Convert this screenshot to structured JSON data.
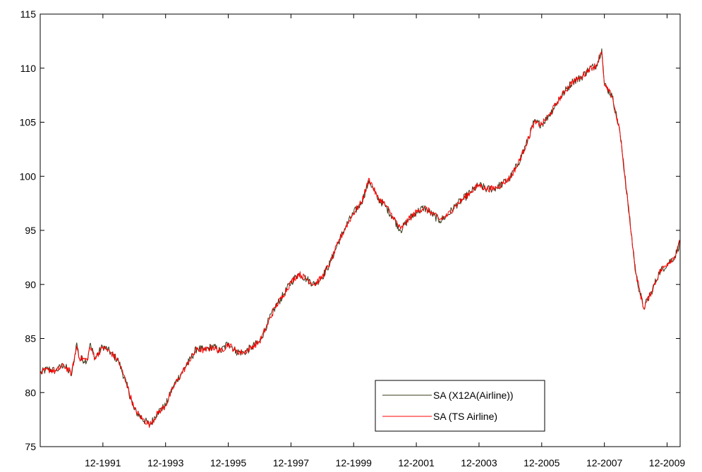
{
  "chart_data": {
    "type": "line",
    "title": "",
    "xlabel": "",
    "ylabel": "",
    "xlim": [
      "1989-12",
      "2010-05"
    ],
    "ylim": [
      75,
      115
    ],
    "grid": false,
    "legend_position": "bottom-right",
    "x_ticks": [
      "12-1991",
      "12-1993",
      "12-1995",
      "12-1997",
      "12-1999",
      "12-2001",
      "12-2003",
      "12-2005",
      "12-2007",
      "12-2009"
    ],
    "y_ticks": [
      75,
      80,
      85,
      90,
      95,
      100,
      105,
      110,
      115
    ],
    "series": [
      {
        "name": "SA (X12A(Airline))",
        "color": "#3a3a1a",
        "points": [
          [
            "1989-12",
            81.8
          ],
          [
            "1990-03",
            82.2
          ],
          [
            "1990-06",
            82.0
          ],
          [
            "1990-09",
            82.6
          ],
          [
            "1990-12",
            81.6
          ],
          [
            "1991-02",
            84.6
          ],
          [
            "1991-03",
            83.1
          ],
          [
            "1991-06",
            83.0
          ],
          [
            "1991-07",
            84.5
          ],
          [
            "1991-09",
            83.2
          ],
          [
            "1991-12",
            84.3
          ],
          [
            "1992-03",
            83.7
          ],
          [
            "1992-06",
            82.9
          ],
          [
            "1992-09",
            80.8
          ],
          [
            "1992-12",
            78.4
          ],
          [
            "1993-03",
            77.6
          ],
          [
            "1993-06",
            77.0
          ],
          [
            "1993-09",
            78.2
          ],
          [
            "1993-12",
            78.8
          ],
          [
            "1994-03",
            80.6
          ],
          [
            "1994-06",
            81.8
          ],
          [
            "1994-09",
            82.9
          ],
          [
            "1994-12",
            84.1
          ],
          [
            "1995-03",
            83.9
          ],
          [
            "1995-06",
            84.3
          ],
          [
            "1995-09",
            83.8
          ],
          [
            "1995-12",
            84.6
          ],
          [
            "1996-03",
            83.8
          ],
          [
            "1996-06",
            83.7
          ],
          [
            "1996-09",
            84.2
          ],
          [
            "1996-12",
            84.7
          ],
          [
            "1997-03",
            86.4
          ],
          [
            "1997-06",
            87.9
          ],
          [
            "1997-09",
            89.0
          ],
          [
            "1997-12",
            90.2
          ],
          [
            "1998-03",
            91.0
          ],
          [
            "1998-06",
            90.5
          ],
          [
            "1998-09",
            90.0
          ],
          [
            "1998-12",
            90.7
          ],
          [
            "1999-03",
            92.0
          ],
          [
            "1999-06",
            93.8
          ],
          [
            "1999-09",
            95.4
          ],
          [
            "1999-12",
            96.6
          ],
          [
            "2000-03",
            97.6
          ],
          [
            "2000-06",
            99.6
          ],
          [
            "2000-09",
            98.0
          ],
          [
            "2000-12",
            97.3
          ],
          [
            "2001-03",
            96.2
          ],
          [
            "2001-06",
            95.0
          ],
          [
            "2001-09",
            96.0
          ],
          [
            "2001-12",
            96.7
          ],
          [
            "2002-03",
            97.1
          ],
          [
            "2002-06",
            96.5
          ],
          [
            "2002-09",
            95.9
          ],
          [
            "2002-12",
            96.4
          ],
          [
            "2003-03",
            97.3
          ],
          [
            "2003-06",
            97.9
          ],
          [
            "2003-09",
            98.6
          ],
          [
            "2003-12",
            99.2
          ],
          [
            "2004-03",
            98.8
          ],
          [
            "2004-06",
            98.9
          ],
          [
            "2004-09",
            99.3
          ],
          [
            "2004-12",
            99.9
          ],
          [
            "2005-03",
            101.2
          ],
          [
            "2005-06",
            102.9
          ],
          [
            "2005-09",
            105.0
          ],
          [
            "2005-12",
            104.8
          ],
          [
            "2006-03",
            105.7
          ],
          [
            "2006-06",
            106.9
          ],
          [
            "2006-09",
            107.9
          ],
          [
            "2006-12",
            108.8
          ],
          [
            "2007-03",
            109.1
          ],
          [
            "2007-06",
            109.9
          ],
          [
            "2007-09",
            110.3
          ],
          [
            "2007-11",
            111.8
          ],
          [
            "2007-12",
            108.5
          ],
          [
            "2008-03",
            107.4
          ],
          [
            "2008-06",
            104.0
          ],
          [
            "2008-09",
            97.5
          ],
          [
            "2008-12",
            91.0
          ],
          [
            "2009-03",
            87.8
          ],
          [
            "2009-06",
            89.3
          ],
          [
            "2009-09",
            91.1
          ],
          [
            "2009-12",
            91.9
          ],
          [
            "2010-03",
            92.6
          ],
          [
            "2010-05",
            93.9
          ]
        ]
      },
      {
        "name": "SA (TS Airline)",
        "color": "#ff0000",
        "points": [
          [
            "1989-12",
            81.8
          ],
          [
            "1990-03",
            82.1
          ],
          [
            "1990-06",
            82.0
          ],
          [
            "1990-09",
            82.5
          ],
          [
            "1990-12",
            81.8
          ],
          [
            "1991-02",
            84.3
          ],
          [
            "1991-03",
            83.2
          ],
          [
            "1991-06",
            83.0
          ],
          [
            "1991-07",
            84.2
          ],
          [
            "1991-09",
            83.2
          ],
          [
            "1991-12",
            84.2
          ],
          [
            "1992-03",
            83.7
          ],
          [
            "1992-06",
            82.9
          ],
          [
            "1992-09",
            80.9
          ],
          [
            "1992-12",
            78.5
          ],
          [
            "1993-03",
            77.6
          ],
          [
            "1993-06",
            77.0
          ],
          [
            "1993-09",
            78.1
          ],
          [
            "1993-12",
            78.8
          ],
          [
            "1994-03",
            80.5
          ],
          [
            "1994-06",
            81.7
          ],
          [
            "1994-09",
            82.9
          ],
          [
            "1994-12",
            84.0
          ],
          [
            "1995-03",
            83.9
          ],
          [
            "1995-06",
            84.2
          ],
          [
            "1995-09",
            83.8
          ],
          [
            "1995-12",
            84.5
          ],
          [
            "1996-03",
            83.8
          ],
          [
            "1996-06",
            83.7
          ],
          [
            "1996-09",
            84.2
          ],
          [
            "1996-12",
            84.7
          ],
          [
            "1997-03",
            86.3
          ],
          [
            "1997-06",
            87.9
          ],
          [
            "1997-09",
            89.0
          ],
          [
            "1997-12",
            90.2
          ],
          [
            "1998-03",
            91.0
          ],
          [
            "1998-06",
            90.5
          ],
          [
            "1998-09",
            90.0
          ],
          [
            "1998-12",
            90.7
          ],
          [
            "1999-03",
            92.0
          ],
          [
            "1999-06",
            93.8
          ],
          [
            "1999-09",
            95.3
          ],
          [
            "1999-12",
            96.6
          ],
          [
            "2000-03",
            97.6
          ],
          [
            "2000-06",
            99.8
          ],
          [
            "2000-09",
            98.1
          ],
          [
            "2000-12",
            97.4
          ],
          [
            "2001-03",
            96.3
          ],
          [
            "2001-06",
            95.1
          ],
          [
            "2001-09",
            96.0
          ],
          [
            "2001-12",
            96.7
          ],
          [
            "2002-03",
            97.1
          ],
          [
            "2002-06",
            96.6
          ],
          [
            "2002-09",
            96.0
          ],
          [
            "2002-12",
            96.4
          ],
          [
            "2003-03",
            97.3
          ],
          [
            "2003-06",
            97.9
          ],
          [
            "2003-09",
            98.6
          ],
          [
            "2003-12",
            99.2
          ],
          [
            "2004-03",
            98.8
          ],
          [
            "2004-06",
            98.9
          ],
          [
            "2004-09",
            99.3
          ],
          [
            "2004-12",
            99.9
          ],
          [
            "2005-03",
            101.2
          ],
          [
            "2005-06",
            102.9
          ],
          [
            "2005-09",
            104.9
          ],
          [
            "2005-12",
            104.8
          ],
          [
            "2006-03",
            105.7
          ],
          [
            "2006-06",
            106.9
          ],
          [
            "2006-09",
            107.9
          ],
          [
            "2006-12",
            108.8
          ],
          [
            "2007-03",
            109.1
          ],
          [
            "2007-06",
            109.9
          ],
          [
            "2007-09",
            110.3
          ],
          [
            "2007-11",
            111.5
          ],
          [
            "2007-12",
            108.4
          ],
          [
            "2008-03",
            107.4
          ],
          [
            "2008-06",
            104.0
          ],
          [
            "2008-09",
            97.6
          ],
          [
            "2008-12",
            91.1
          ],
          [
            "2009-03",
            87.8
          ],
          [
            "2009-06",
            89.3
          ],
          [
            "2009-09",
            91.1
          ],
          [
            "2009-12",
            91.9
          ],
          [
            "2010-03",
            92.6
          ],
          [
            "2010-05",
            94.0
          ]
        ]
      }
    ]
  }
}
